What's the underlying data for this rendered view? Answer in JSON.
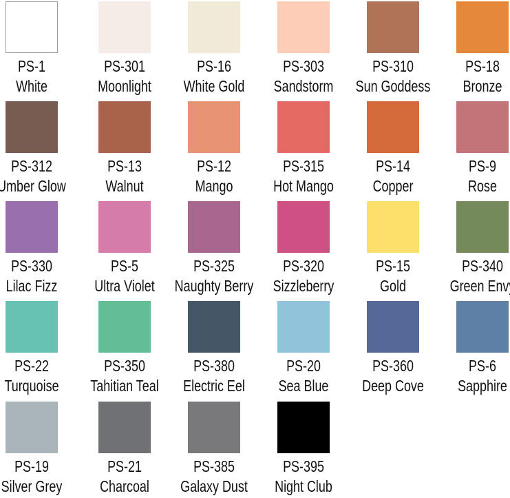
{
  "swatches": [
    {
      "code": "PS-1",
      "name": "White",
      "color": "#ffffff"
    },
    {
      "code": "PS-301",
      "name": "Moonlight",
      "color": "#f5ebe7"
    },
    {
      "code": "PS-16",
      "name": "White Gold",
      "color": "#f1ead8"
    },
    {
      "code": "PS-303",
      "name": "Sandstorm",
      "color": "#fdcdb8"
    },
    {
      "code": "PS-310",
      "name": "Sun Goddess",
      "color": "#b07358"
    },
    {
      "code": "PS-18",
      "name": "Bronze",
      "color": "#e5883b"
    },
    {
      "code": "PS-312",
      "name": "Umber Glow",
      "color": "#785c51"
    },
    {
      "code": "PS-13",
      "name": "Walnut",
      "color": "#a8634a"
    },
    {
      "code": "PS-12",
      "name": "Mango",
      "color": "#e89373"
    },
    {
      "code": "PS-315",
      "name": "Hot Mango",
      "color": "#e46963"
    },
    {
      "code": "PS-14",
      "name": "Copper",
      "color": "#d4693a"
    },
    {
      "code": "PS-9",
      "name": "Rose",
      "color": "#c27479"
    },
    {
      "code": "PS-330",
      "name": "Lilac Fizz",
      "color": "#9a6fad"
    },
    {
      "code": "PS-5",
      "name": "Ultra Violet",
      "color": "#d57cab"
    },
    {
      "code": "PS-325",
      "name": "Naughty Berry",
      "color": "#a9678f"
    },
    {
      "code": "PS-320",
      "name": "Sizzleberry",
      "color": "#cd5182"
    },
    {
      "code": "PS-15",
      "name": "Gold",
      "color": "#fde06c"
    },
    {
      "code": "PS-340",
      "name": "Green Envy",
      "color": "#758a5a"
    },
    {
      "code": "PS-22",
      "name": "Turquoise",
      "color": "#68c2b4"
    },
    {
      "code": "PS-350",
      "name": "Tahitian Teal",
      "color": "#63bd95"
    },
    {
      "code": "PS-380",
      "name": "Electric Eel",
      "color": "#455667"
    },
    {
      "code": "PS-20",
      "name": "Sea Blue",
      "color": "#91c3da"
    },
    {
      "code": "PS-360",
      "name": "Deep Cove",
      "color": "#566897"
    },
    {
      "code": "PS-6",
      "name": "Sapphire",
      "color": "#5e7fa6"
    },
    {
      "code": "PS-19",
      "name": "Silver Grey",
      "color": "#a9b4b9"
    },
    {
      "code": "PS-21",
      "name": "Charcoal",
      "color": "#6f7174"
    },
    {
      "code": "PS-385",
      "name": "Galaxy Dust",
      "color": "#79787a"
    },
    {
      "code": "PS-395",
      "name": "Night Club",
      "color": "#000000"
    }
  ]
}
